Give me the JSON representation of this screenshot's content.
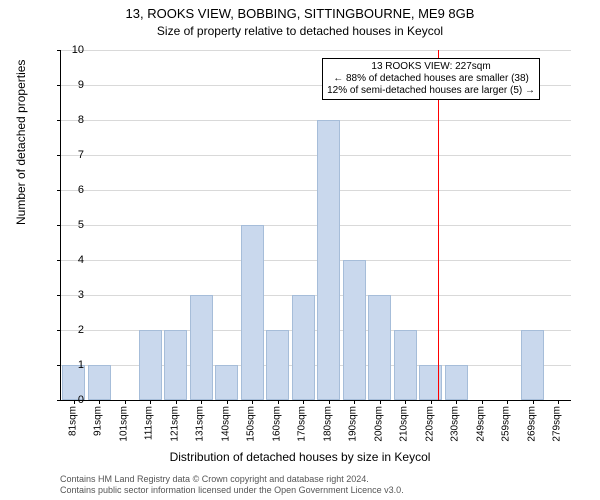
{
  "title": "13, ROOKS VIEW, BOBBING, SITTINGBOURNE, ME9 8GB",
  "subtitle": "Size of property relative to detached houses in Keycol",
  "ylabel": "Number of detached properties",
  "xlabel": "Distribution of detached houses by size in Keycol",
  "chart": {
    "type": "bar",
    "ylim": [
      0,
      10
    ],
    "ytick_step": 1,
    "categories": [
      "81sqm",
      "91sqm",
      "101sqm",
      "111sqm",
      "121sqm",
      "131sqm",
      "140sqm",
      "150sqm",
      "160sqm",
      "170sqm",
      "180sqm",
      "190sqm",
      "200sqm",
      "210sqm",
      "220sqm",
      "230sqm",
      "249sqm",
      "259sqm",
      "269sqm",
      "279sqm"
    ],
    "values": [
      1,
      1,
      0,
      2,
      2,
      3,
      1,
      5,
      2,
      3,
      8,
      4,
      3,
      2,
      1,
      1,
      0,
      0,
      2,
      0
    ],
    "bar_color": "#c9d8ed",
    "bar_border": "#a6bdd9",
    "grid_color": "#d9d9d9",
    "background_color": "#ffffff",
    "reference_index": 14.3,
    "reference_color": "#ff0000"
  },
  "annotation": {
    "line1": "13 ROOKS VIEW: 227sqm",
    "line2": "← 88% of detached houses are smaller (38)",
    "line3": "12% of semi-detached houses are larger (5) →"
  },
  "footer": {
    "line1": "Contains HM Land Registry data © Crown copyright and database right 2024.",
    "line2": "Contains public sector information licensed under the Open Government Licence v3.0."
  }
}
